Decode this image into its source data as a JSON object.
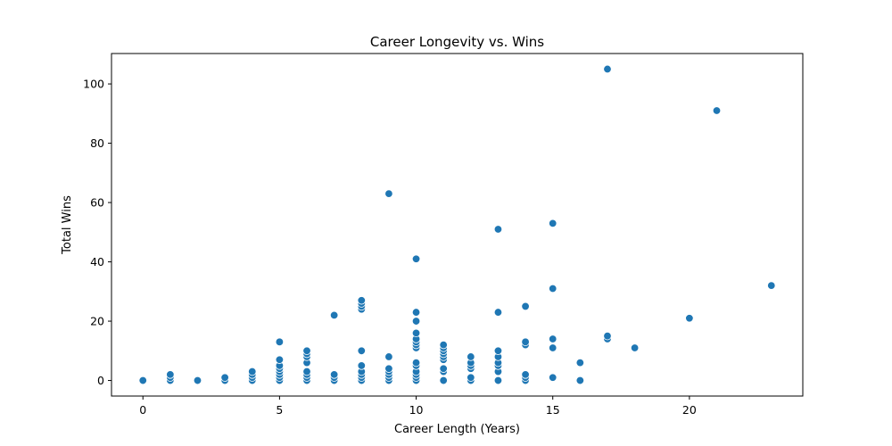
{
  "chart_data": {
    "type": "scatter",
    "title": "Career Longevity vs. Wins",
    "xlabel": "Career Length (Years)",
    "ylabel": "Total Wins",
    "xlim": [
      -1.15,
      24.15
    ],
    "ylim": [
      -5.25,
      110.25
    ],
    "xticks": [
      0,
      5,
      10,
      15,
      20
    ],
    "yticks": [
      0,
      20,
      40,
      60,
      80,
      100
    ],
    "grid": false,
    "color": "#1f77b4",
    "points": [
      [
        0,
        0
      ],
      [
        1,
        0
      ],
      [
        1,
        1
      ],
      [
        1,
        2
      ],
      [
        2,
        0
      ],
      [
        3,
        0
      ],
      [
        3,
        1
      ],
      [
        4,
        0
      ],
      [
        4,
        1
      ],
      [
        4,
        2
      ],
      [
        4,
        3
      ],
      [
        5,
        0
      ],
      [
        5,
        1
      ],
      [
        5,
        2
      ],
      [
        5,
        3
      ],
      [
        5,
        4
      ],
      [
        5,
        5
      ],
      [
        5,
        7
      ],
      [
        5,
        13
      ],
      [
        6,
        0
      ],
      [
        6,
        1
      ],
      [
        6,
        2
      ],
      [
        6,
        3
      ],
      [
        6,
        6
      ],
      [
        6,
        8
      ],
      [
        6,
        9
      ],
      [
        6,
        10
      ],
      [
        7,
        0
      ],
      [
        7,
        1
      ],
      [
        7,
        2
      ],
      [
        7,
        22
      ],
      [
        8,
        0
      ],
      [
        8,
        1
      ],
      [
        8,
        2
      ],
      [
        8,
        3
      ],
      [
        8,
        5
      ],
      [
        8,
        10
      ],
      [
        8,
        24
      ],
      [
        8,
        25
      ],
      [
        8,
        26
      ],
      [
        8,
        27
      ],
      [
        9,
        0
      ],
      [
        9,
        1
      ],
      [
        9,
        2
      ],
      [
        9,
        3
      ],
      [
        9,
        4
      ],
      [
        9,
        8
      ],
      [
        9,
        63
      ],
      [
        10,
        0
      ],
      [
        10,
        1
      ],
      [
        10,
        2
      ],
      [
        10,
        3
      ],
      [
        10,
        5
      ],
      [
        10,
        6
      ],
      [
        10,
        11
      ],
      [
        10,
        12
      ],
      [
        10,
        13
      ],
      [
        10,
        14
      ],
      [
        10,
        16
      ],
      [
        10,
        20
      ],
      [
        10,
        23
      ],
      [
        10,
        41
      ],
      [
        11,
        0
      ],
      [
        11,
        3
      ],
      [
        11,
        4
      ],
      [
        11,
        7
      ],
      [
        11,
        8
      ],
      [
        11,
        9
      ],
      [
        11,
        10
      ],
      [
        11,
        11
      ],
      [
        11,
        12
      ],
      [
        12,
        0
      ],
      [
        12,
        1
      ],
      [
        12,
        4
      ],
      [
        12,
        5
      ],
      [
        12,
        6
      ],
      [
        12,
        8
      ],
      [
        13,
        0
      ],
      [
        13,
        3
      ],
      [
        13,
        5
      ],
      [
        13,
        6
      ],
      [
        13,
        8
      ],
      [
        13,
        10
      ],
      [
        13,
        23
      ],
      [
        13,
        51
      ],
      [
        14,
        0
      ],
      [
        14,
        1
      ],
      [
        14,
        2
      ],
      [
        14,
        12
      ],
      [
        14,
        13
      ],
      [
        14,
        25
      ],
      [
        15,
        1
      ],
      [
        15,
        11
      ],
      [
        15,
        14
      ],
      [
        15,
        31
      ],
      [
        15,
        53
      ],
      [
        16,
        0
      ],
      [
        16,
        6
      ],
      [
        17,
        14
      ],
      [
        17,
        15
      ],
      [
        17,
        105
      ],
      [
        18,
        11
      ],
      [
        20,
        21
      ],
      [
        21,
        91
      ],
      [
        23,
        32
      ]
    ]
  }
}
